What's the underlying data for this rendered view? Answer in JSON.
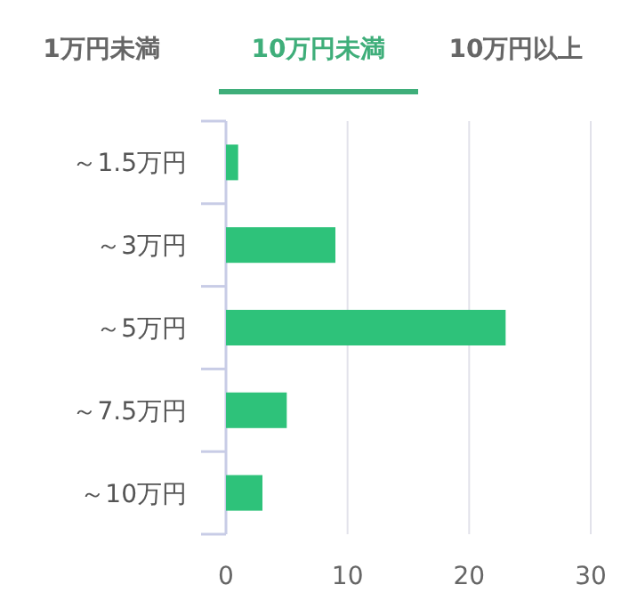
{
  "chart_data": {
    "type": "bar",
    "orientation": "horizontal",
    "annotations": [
      "1万円未満",
      "10万円未満",
      "10万円以上"
    ],
    "categories": [
      "～1.5万円",
      "～3万円",
      "～5万円",
      "～7.5万円",
      "～10万円"
    ],
    "values": [
      1,
      9,
      23,
      5,
      3
    ],
    "color": "#2ec27a",
    "xlim": [
      0,
      30
    ],
    "xticks": [
      0,
      10,
      20,
      30
    ],
    "grid": "x"
  }
}
